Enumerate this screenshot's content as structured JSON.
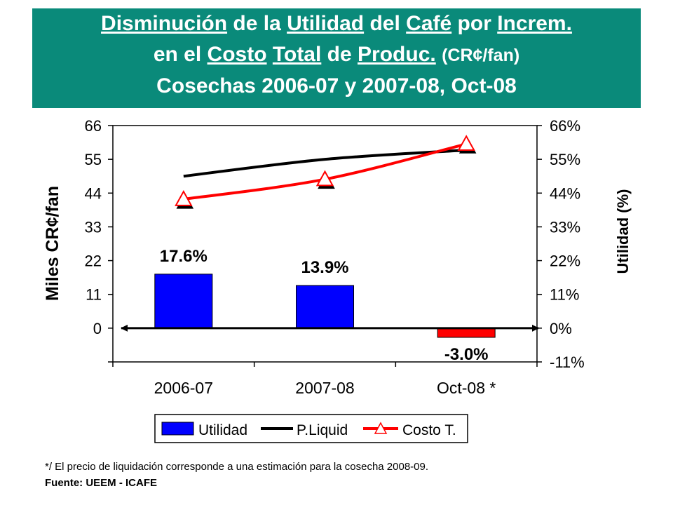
{
  "header": {
    "line1": {
      "w1": "Disminución",
      "w2": "de la",
      "w3": "Utilidad",
      "w4": "del",
      "w5": "Café",
      "w6": "por",
      "w7": "Increm."
    },
    "line2": {
      "w1": "en el",
      "w2": "Costo",
      "w3": "Total",
      "w4": "de",
      "w5": "Produc.",
      "w6": "(CR¢/fan)"
    },
    "line3": "Cosechas 2006-07 y 2007-08, Oct-08"
  },
  "colors": {
    "header_bg": "#0A8A7A",
    "utilidad": "#0000FF",
    "utilidad_negative": "#FF0000",
    "pliquid": "#000000",
    "costo": "#FF0000",
    "marker_fill": "#FFFFFF"
  },
  "chart_data": {
    "type": "bar+line",
    "categories": [
      "2006-07",
      "2007-08",
      "Oct-08 *"
    ],
    "left_axis": {
      "label": "Miles CR¢/fan",
      "ticks": [
        0,
        11,
        22,
        33,
        44,
        55,
        66
      ],
      "range": [
        -11,
        66
      ]
    },
    "right_axis": {
      "label": "Utilidad (%)",
      "ticks": [
        "-11%",
        "0%",
        "11%",
        "22%",
        "33%",
        "44%",
        "55%",
        "66%"
      ],
      "range": [
        -11,
        66
      ]
    },
    "series": [
      {
        "name": "Utilidad",
        "type": "bar",
        "axis": "right",
        "values": [
          17.6,
          13.9,
          -3.0
        ],
        "labels": [
          "17.6%",
          "13.9%",
          "-3.0%"
        ]
      },
      {
        "name": "P.Liquid",
        "type": "line",
        "axis": "left",
        "values": [
          49.5,
          55,
          58
        ]
      },
      {
        "name": "Costo T.",
        "type": "line",
        "axis": "left",
        "marker": "triangle",
        "values": [
          42,
          48.5,
          60
        ]
      }
    ],
    "legend_position": "bottom"
  },
  "footnote": "*/ El precio de liquidación corresponde a una estimación para la cosecha 2008-09.",
  "source": "Fuente: UEEM - ICAFE"
}
